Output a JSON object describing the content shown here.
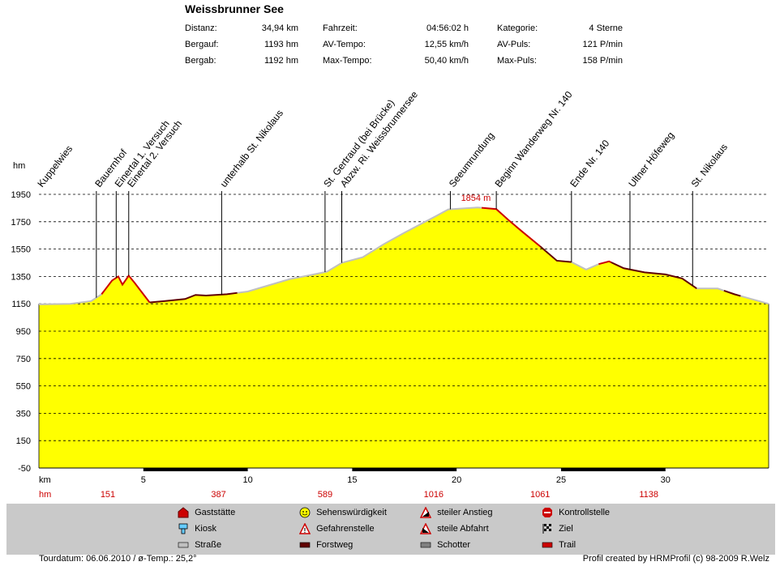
{
  "header": {
    "title": "Weissbrunner See",
    "stats": [
      {
        "label": "Distanz:",
        "value": "34,94 km"
      },
      {
        "label": "Bergauf:",
        "value": "1193 hm"
      },
      {
        "label": "Bergab:",
        "value": "1192 hm"
      },
      {
        "label": "Fahrzeit:",
        "value": "04:56:02 h"
      },
      {
        "label": "AV-Tempo:",
        "value": "12,55 km/h"
      },
      {
        "label": "Max-Tempo:",
        "value": "50,40 km/h"
      },
      {
        "label": "Kategorie:",
        "value": "4 Sterne"
      },
      {
        "label": "AV-Puls:",
        "value": "121 P/min"
      },
      {
        "label": "Max-Puls:",
        "value": "158 P/min"
      }
    ]
  },
  "chart_data": {
    "type": "area",
    "title": "Weissbrunner See",
    "xlabel": "km",
    "ylabel": "hm",
    "xlim": [
      0,
      34.94
    ],
    "ylim": [
      -50,
      1950
    ],
    "y_ticks": [
      1950,
      1750,
      1550,
      1350,
      1150,
      950,
      750,
      550,
      350,
      150,
      -50
    ],
    "x_ticks": [
      5,
      10,
      15,
      20,
      25,
      30
    ],
    "max_label": "1854 m",
    "profile": {
      "x": [
        0,
        1.5,
        2.5,
        3.0,
        3.5,
        3.8,
        4.0,
        4.3,
        4.6,
        5.3,
        6.0,
        7.0,
        7.5,
        8.0,
        9.0,
        10.0,
        11.0,
        12.0,
        13.0,
        13.8,
        14.5,
        15.5,
        16.5,
        17.5,
        18.5,
        19.0,
        19.6,
        20.4,
        21.0,
        21.9,
        22.5,
        23.2,
        24.0,
        24.8,
        25.5,
        26.2,
        26.8,
        27.3,
        28.0,
        29.0,
        30.0,
        30.8,
        31.5,
        32.5,
        33.3,
        34.0,
        34.94
      ],
      "y": [
        1146,
        1150,
        1170,
        1220,
        1320,
        1350,
        1290,
        1356,
        1300,
        1160,
        1170,
        1185,
        1215,
        1210,
        1220,
        1240,
        1285,
        1330,
        1360,
        1385,
        1450,
        1490,
        1585,
        1670,
        1750,
        1790,
        1840,
        1848,
        1854,
        1842,
        1760,
        1670,
        1570,
        1465,
        1455,
        1400,
        1440,
        1460,
        1410,
        1380,
        1365,
        1335,
        1262,
        1262,
        1220,
        1190,
        1150
      ]
    },
    "surface_segments": [
      {
        "type": "Straße",
        "from": 0,
        "to": 3.0
      },
      {
        "type": "Trail",
        "from": 3.0,
        "to": 5.3
      },
      {
        "type": "Forstweg",
        "from": 5.3,
        "to": 9.5
      },
      {
        "type": "Straße",
        "from": 9.5,
        "to": 21.2
      },
      {
        "type": "Trail",
        "from": 21.2,
        "to": 24.0
      },
      {
        "type": "Forstweg",
        "from": 24.0,
        "to": 25.5
      },
      {
        "type": "Straße",
        "from": 25.5,
        "to": 26.8
      },
      {
        "type": "Trail",
        "from": 26.8,
        "to": 27.4
      },
      {
        "type": "Forstweg",
        "from": 27.4,
        "to": 31.5
      },
      {
        "type": "Straße",
        "from": 31.5,
        "to": 32.8
      },
      {
        "type": "Forstweg",
        "from": 32.8,
        "to": 33.6
      },
      {
        "type": "Straße",
        "from": 33.6,
        "to": 34.94
      }
    ],
    "waypoints": [
      {
        "name": "Kuppelwies",
        "km": 0.0
      },
      {
        "name": "Bauernhof",
        "km": 2.75
      },
      {
        "name": "Einertal 1. Versuch",
        "km": 3.7
      },
      {
        "name": "Einertal 2. Versuch",
        "km": 4.3
      },
      {
        "name": "unterhalb St. Nikolaus",
        "km": 8.75
      },
      {
        "name": "St. Gertraud (bei Brücke)",
        "km": 13.7
      },
      {
        "name": "Abzw. Ri. Weissbrunnersee",
        "km": 14.5
      },
      {
        "name": "Seeumrundung",
        "km": 19.7
      },
      {
        "name": "Beginn Wanderweg Nr. 140",
        "km": 21.9
      },
      {
        "name": "Ende Nr. 140",
        "km": 25.5
      },
      {
        "name": "Ultner Höfeweg",
        "km": 28.3
      },
      {
        "name": "St. Nikolaus",
        "km": 31.3
      }
    ],
    "hm_row": [
      {
        "km": 3.3,
        "value": "151"
      },
      {
        "km": 8.6,
        "value": "387"
      },
      {
        "km": 13.7,
        "value": "589"
      },
      {
        "km": 18.9,
        "value": "1016"
      },
      {
        "km": 24.0,
        "value": "1061"
      },
      {
        "km": 29.2,
        "value": "1138"
      }
    ],
    "black_bars": [
      {
        "from": 5,
        "to": 10
      },
      {
        "from": 15,
        "to": 20
      },
      {
        "from": 25,
        "to": 30
      }
    ]
  },
  "axis": {
    "y_unit": "hm",
    "x_unit": "km",
    "hm_row_label": "hm"
  },
  "legend": {
    "items": [
      {
        "icon": "gaststaette-icon",
        "label": "Gaststätte"
      },
      {
        "icon": "kiosk-icon",
        "label": "Kiosk"
      },
      {
        "icon": "strasse-icon",
        "label": "Straße"
      },
      {
        "icon": "sehenswuerdigkeit-icon",
        "label": "Sehenswürdigkeit"
      },
      {
        "icon": "gefahrenstelle-icon",
        "label": "Gefahrenstelle"
      },
      {
        "icon": "forstweg-icon",
        "label": "Forstweg"
      },
      {
        "icon": "steiler-anstieg-icon",
        "label": "steiler Anstieg"
      },
      {
        "icon": "steile-abfahrt-icon",
        "label": "steile Abfahrt"
      },
      {
        "icon": "schotter-icon",
        "label": "Schotter"
      },
      {
        "icon": "kontrollstelle-icon",
        "label": "Kontrollstelle"
      },
      {
        "icon": "ziel-icon",
        "label": "Ziel"
      },
      {
        "icon": "trail-icon",
        "label": "Trail"
      }
    ]
  },
  "footer": {
    "left": "Tourdatum: 06.06.2010  /  ø-Temp.: 25,2°",
    "right": "Profil created by HRMProfil (c) 98-2009 R.Welz"
  },
  "colors": {
    "fill": "#ffff00",
    "strasse": "#c0c0c0",
    "forstweg": "#600000",
    "trail": "#cc0000",
    "accent_red": "#cc0000",
    "legend_bg": "#c9c9c9"
  }
}
